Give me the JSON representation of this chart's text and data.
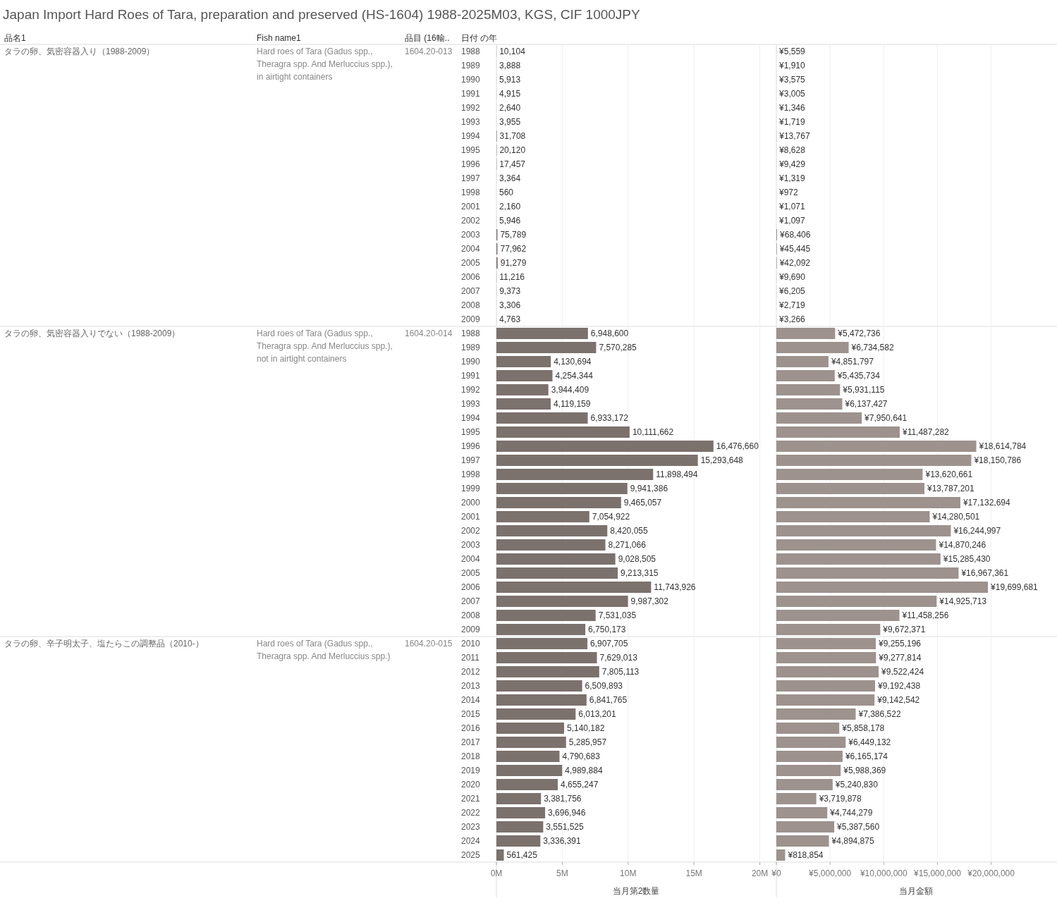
{
  "chart_data": [
    {
      "type": "bar",
      "orientation": "horizontal",
      "title": "Japan Import Hard Roes of Tara, preparation and preserved (HS-1604) 1988-2025M03, KGS, CIF 1000JPY",
      "annotations": [
        "タラの卵、気密容器入り（1988-2009）",
        "Hard roes of Tara (Gadus spp., Theragra spp. And Merluccius spp.), in airtight containers",
        "1604.20-013"
      ],
      "categories": [
        "1988",
        "1989",
        "1990",
        "1991",
        "1992",
        "1993",
        "1994",
        "1995",
        "1996",
        "1997",
        "1998",
        "2001",
        "2002",
        "2003",
        "2004",
        "2005",
        "2006",
        "2007",
        "2008",
        "2009"
      ],
      "color": "#7b716d",
      "values": [
        10104,
        3888,
        5913,
        4915,
        2640,
        3955,
        31708,
        20120,
        17457,
        3364,
        560,
        2160,
        5946,
        75789,
        77962,
        91279,
        11216,
        9373,
        3306,
        4763
      ],
      "value_labels": [
        "10,104",
        "3,888",
        "5,913",
        "4,915",
        "2,640",
        "3,955",
        "31,708",
        "20,120",
        "17,457",
        "3,364",
        "560",
        "2,160",
        "5,946",
        "75,789",
        "77,962",
        "91,279",
        "11,216",
        "9,373",
        "3,306",
        "4,763"
      ],
      "xlim": [
        0,
        21200000
      ],
      "xticks": [
        {
          "value": 0,
          "label": null
        },
        {
          "value": 5000000,
          "label": null
        },
        {
          "value": 10000000,
          "label": null
        },
        {
          "value": 15000000,
          "label": null
        },
        {
          "value": 20000000,
          "label": null
        }
      ],
      "grid": "x",
      "tick_labels": "y"
    },
    {
      "type": "bar",
      "orientation": "horizontal",
      "annotations": [
        "品名1",
        "Fish name1",
        "品目 (16輸..",
        "日付 の年"
      ],
      "color": "#9d928e",
      "values": [
        5559,
        1910,
        3575,
        3005,
        1346,
        1719,
        13767,
        8628,
        9429,
        1319,
        972,
        1071,
        1097,
        68406,
        45445,
        42092,
        9690,
        6205,
        2719,
        3266
      ],
      "categories": [
        null,
        null,
        null,
        null,
        null,
        null,
        null,
        null,
        null,
        null,
        null,
        null,
        null,
        null,
        null,
        null,
        null,
        null,
        null,
        null
      ],
      "value_labels": [
        "¥5,559",
        "¥1,910",
        "¥3,575",
        "¥3,005",
        "¥1,346",
        "¥1,719",
        "¥13,767",
        "¥8,628",
        "¥9,429",
        "¥1,319",
        "¥972",
        "¥1,071",
        "¥1,097",
        "¥68,406",
        "¥45,445",
        "¥42,092",
        "¥9,690",
        "¥6,205",
        "¥2,719",
        "¥3,266"
      ],
      "xlim": [
        0,
        26000000
      ],
      "xticks": [
        {
          "value": 0,
          "label": null
        },
        {
          "value": 5000000,
          "label": null
        },
        {
          "value": 10000000,
          "label": null
        },
        {
          "value": 15000000,
          "label": null
        },
        {
          "value": 20000000,
          "label": null
        }
      ],
      "grid": "x",
      "tick_labels": false
    },
    {
      "type": "bar",
      "orientation": "horizontal",
      "annotations": [
        "タラの卵、気密容器入りでない（1988-2009）",
        "Hard roes of Tara (Gadus spp., Theragra spp. And Merluccius spp.), not in airtight containers",
        "1604.20-014"
      ],
      "categories": [
        "1988",
        "1989",
        "1990",
        "1991",
        "1992",
        "1993",
        "1994",
        "1995",
        "1996",
        "1997",
        "1998",
        "1999",
        "2000",
        "2001",
        "2002",
        "2003",
        "2004",
        "2005",
        "2006",
        "2007",
        "2008",
        "2009"
      ],
      "color": "#7b716d",
      "values": [
        6948600,
        7570285,
        4130694,
        4254344,
        3944409,
        4119159,
        6933172,
        10111662,
        16476660,
        15293648,
        11898494,
        9941386,
        9465057,
        7054922,
        8420055,
        8271066,
        9028505,
        9213315,
        11743926,
        9987302,
        7531035,
        6750173
      ],
      "value_labels": [
        "6,948,600",
        "7,570,285",
        "4,130,694",
        "4,254,344",
        "3,944,409",
        "4,119,159",
        "6,933,172",
        "10,111,662",
        "16,476,660",
        "15,293,648",
        "11,898,494",
        "9,941,386",
        "9,465,057",
        "7,054,922",
        "8,420,055",
        "8,271,066",
        "9,028,505",
        "9,213,315",
        "11,743,926",
        "9,987,302",
        "7,531,035",
        "6,750,173"
      ],
      "xlim": [
        0,
        21200000
      ],
      "xticks": [
        {
          "value": 0,
          "label": null
        },
        {
          "value": 5000000,
          "label": null
        },
        {
          "value": 10000000,
          "label": null
        },
        {
          "value": 15000000,
          "label": null
        },
        {
          "value": 20000000,
          "label": null
        }
      ],
      "grid": "x",
      "tick_labels": "y"
    },
    {
      "type": "bar",
      "orientation": "horizontal",
      "categories": [
        null,
        null,
        null,
        null,
        null,
        null,
        null,
        null,
        null,
        null,
        null,
        null,
        null,
        null,
        null,
        null,
        null,
        null,
        null,
        null,
        null,
        null
      ],
      "color": "#9d928e",
      "values": [
        5472736,
        6734582,
        4851797,
        5435734,
        5931115,
        6137427,
        7950641,
        11487282,
        18614784,
        18150786,
        13620661,
        13787201,
        17132694,
        14280501,
        16244997,
        14870246,
        15285430,
        16967361,
        19699681,
        14925713,
        11458256,
        9672371
      ],
      "value_labels": [
        "¥5,472,736",
        "¥6,734,582",
        "¥4,851,797",
        "¥5,435,734",
        "¥5,931,115",
        "¥6,137,427",
        "¥7,950,641",
        "¥11,487,282",
        "¥18,614,784",
        "¥18,150,786",
        "¥13,620,661",
        "¥13,787,201",
        "¥17,132,694",
        "¥14,280,501",
        "¥16,244,997",
        "¥14,870,246",
        "¥15,285,430",
        "¥16,967,361",
        "¥19,699,681",
        "¥14,925,713",
        "¥11,458,256",
        "¥9,672,371"
      ],
      "xlim": [
        0,
        26000000
      ],
      "xticks": [
        {
          "value": 0,
          "label": null
        },
        {
          "value": 5000000,
          "label": null
        },
        {
          "value": 10000000,
          "label": null
        },
        {
          "value": 15000000,
          "label": null
        },
        {
          "value": 20000000,
          "label": null
        }
      ],
      "grid": "x",
      "tick_labels": false
    },
    {
      "type": "bar",
      "orientation": "horizontal",
      "xlabel": "当月第2数量",
      "annotations": [
        "タラの卵、辛子明太子、塩たらこの調整品（2010-）",
        "Hard roes of Tara (Gadus spp., Theragra spp. And Merluccius spp.)",
        "1604.20-015"
      ],
      "categories": [
        "2010",
        "2011",
        "2012",
        "2013",
        "2014",
        "2015",
        "2016",
        "2017",
        "2018",
        "2019",
        "2020",
        "2021",
        "2022",
        "2023",
        "2024",
        "2025"
      ],
      "color": "#7b716d",
      "values": [
        6907705,
        7629013,
        7805113,
        6509893,
        6841765,
        6013201,
        5140182,
        5285957,
        4790683,
        4989884,
        4655247,
        3381756,
        3696946,
        3551525,
        3336391,
        561425
      ],
      "value_labels": [
        "6,907,705",
        "7,629,013",
        "7,805,113",
        "6,509,893",
        "6,841,765",
        "6,013,201",
        "5,140,182",
        "5,285,957",
        "4,790,683",
        "4,989,884",
        "4,655,247",
        "3,381,756",
        "3,696,946",
        "3,551,525",
        "3,336,391",
        "561,425"
      ],
      "xlim": [
        0,
        21200000
      ],
      "xticks": [
        {
          "value": 0,
          "label": "0M"
        },
        {
          "value": 5000000,
          "label": "5M"
        },
        {
          "value": 10000000,
          "label": "10M"
        },
        {
          "value": 15000000,
          "label": "15M"
        },
        {
          "value": 20000000,
          "label": "20M"
        }
      ],
      "grid": "x"
    },
    {
      "type": "bar",
      "orientation": "horizontal",
      "xlabel": "当月金額",
      "categories": [
        null,
        null,
        null,
        null,
        null,
        null,
        null,
        null,
        null,
        null,
        null,
        null,
        null,
        null,
        null,
        null
      ],
      "color": "#9d928e",
      "values": [
        9255196,
        9277814,
        9522424,
        9192438,
        9142542,
        7386522,
        5858178,
        6449132,
        6165174,
        5988369,
        5240830,
        3719878,
        4744279,
        5387560,
        4894875,
        818854
      ],
      "value_labels": [
        "¥9,255,196",
        "¥9,277,814",
        "¥9,522,424",
        "¥9,192,438",
        "¥9,142,542",
        "¥7,386,522",
        "¥5,858,178",
        "¥6,449,132",
        "¥6,165,174",
        "¥5,988,369",
        "¥5,240,830",
        "¥3,719,878",
        "¥4,744,279",
        "¥5,387,560",
        "¥4,894,875",
        "¥818,854"
      ],
      "xlim": [
        0,
        26000000
      ],
      "xticks": [
        {
          "value": 0,
          "label": "¥0"
        },
        {
          "value": 5000000,
          "label": "¥5,000,000"
        },
        {
          "value": 10000000,
          "label": "¥10,000,000"
        },
        {
          "value": 15000000,
          "label": "¥15,000,000"
        },
        {
          "value": 20000000,
          "label": "¥20,000,000"
        }
      ],
      "grid": "x",
      "tick_labels": "x"
    }
  ]
}
